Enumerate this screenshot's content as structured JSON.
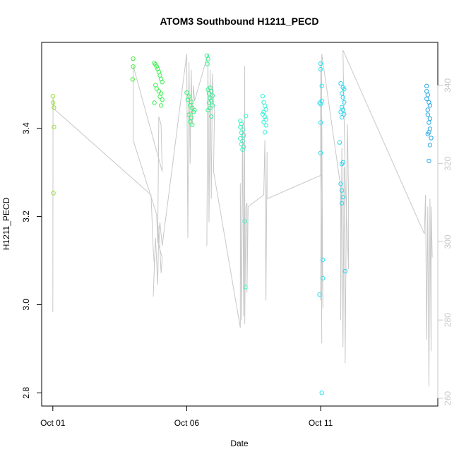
{
  "chart_data": {
    "type": "scatter",
    "title": "ATOM3 Southbound H1211_PECD",
    "xlabel": "Date",
    "ylabel": "H1211_PECD",
    "xlim": [
      "2016-09-30T14:00",
      "2016-10-15T09:00"
    ],
    "ylim": [
      2.77,
      3.595
    ],
    "y2lim": [
      258,
      351
    ],
    "x_ticks": [
      {
        "date": "2016-10-01",
        "label": "Oct 01"
      },
      {
        "date": "2016-10-06",
        "label": "Oct 06"
      },
      {
        "date": "2016-10-11",
        "label": "Oct 11"
      }
    ],
    "y_ticks": [
      "2.8",
      "3.0",
      "3.2",
      "3.4"
    ],
    "y2_ticks": [
      "260",
      "280",
      "300",
      "320",
      "340"
    ],
    "grid": false,
    "legend": "none",
    "colors": {
      "points_gradient": [
        "#9be040",
        "#4aea2c",
        "#3cf26a",
        "#3cf5c8",
        "#30e8ee",
        "#2cc2f0",
        "#2ba4e6"
      ],
      "secondary_line": "#c8c8c8"
    },
    "series": [
      {
        "axis": "left",
        "points": [
          [
            "2016-10-01T00:00",
            3.473
          ],
          [
            "2016-10-01T00:10",
            3.458
          ],
          [
            "2016-10-01T01:00",
            3.447
          ],
          [
            "2016-10-01T01:00",
            3.403
          ],
          [
            "2016-10-01T00:30",
            3.253
          ],
          [
            "2016-10-04T00:00",
            3.558
          ],
          [
            "2016-10-04T00:00",
            3.54
          ],
          [
            "2016-10-03T23:30",
            3.511
          ],
          [
            "2016-10-04T19:00",
            3.548
          ],
          [
            "2016-10-04T20:00",
            3.545
          ],
          [
            "2016-10-04T21:00",
            3.54
          ],
          [
            "2016-10-04T22:00",
            3.535
          ],
          [
            "2016-10-04T23:00",
            3.528
          ],
          [
            "2016-10-05T00:00",
            3.52
          ],
          [
            "2016-10-05T01:00",
            3.512
          ],
          [
            "2016-10-05T02:00",
            3.505
          ],
          [
            "2016-10-04T20:00",
            3.498
          ],
          [
            "2016-10-04T21:00",
            3.49
          ],
          [
            "2016-10-04T23:00",
            3.484
          ],
          [
            "2016-10-05T01:00",
            3.479
          ],
          [
            "2016-10-05T00:00",
            3.472
          ],
          [
            "2016-10-05T02:00",
            3.465
          ],
          [
            "2016-10-04T19:00",
            3.458
          ],
          [
            "2016-10-05T01:00",
            3.452
          ],
          [
            "2016-10-06T00:00",
            3.481
          ],
          [
            "2016-10-06T02:00",
            3.472
          ],
          [
            "2016-10-06T01:00",
            3.465
          ],
          [
            "2016-10-06T04:00",
            3.46
          ],
          [
            "2016-10-06T03:00",
            3.452
          ],
          [
            "2016-10-06T05:00",
            3.446
          ],
          [
            "2016-10-06T07:00",
            3.441
          ],
          [
            "2016-10-06T06:00",
            3.437
          ],
          [
            "2016-10-06T02:00",
            3.431
          ],
          [
            "2016-10-06T04:00",
            3.424
          ],
          [
            "2016-10-06T03:00",
            3.415
          ],
          [
            "2016-10-06T05:00",
            3.408
          ],
          [
            "2016-10-06T18:00",
            3.565
          ],
          [
            "2016-10-06T19:00",
            3.557
          ],
          [
            "2016-10-06T18:30",
            3.546
          ],
          [
            "2016-10-06T21:00",
            3.492
          ],
          [
            "2016-10-06T19:00",
            3.488
          ],
          [
            "2016-10-06T22:00",
            3.484
          ],
          [
            "2016-10-06T20:00",
            3.479
          ],
          [
            "2016-10-06T23:00",
            3.474
          ],
          [
            "2016-10-06T21:00",
            3.469
          ],
          [
            "2016-10-06T22:00",
            3.463
          ],
          [
            "2016-10-06T20:00",
            3.458
          ],
          [
            "2016-10-06T23:00",
            3.452
          ],
          [
            "2016-10-06T21:00",
            3.446
          ],
          [
            "2016-10-06T19:00",
            3.441
          ],
          [
            "2016-10-06T22:00",
            3.427
          ],
          [
            "2016-10-08T00:00",
            3.417
          ],
          [
            "2016-10-08T01:00",
            3.41
          ],
          [
            "2016-10-08T00:00",
            3.403
          ],
          [
            "2016-10-08T02:00",
            3.397
          ],
          [
            "2016-10-08T01:00",
            3.39
          ],
          [
            "2016-10-08T03:00",
            3.384
          ],
          [
            "2016-10-08T00:00",
            3.377
          ],
          [
            "2016-10-08T02:00",
            3.371
          ],
          [
            "2016-10-08T01:00",
            3.364
          ],
          [
            "2016-10-08T03:00",
            3.358
          ],
          [
            "2016-10-08T02:00",
            3.352
          ],
          [
            "2016-10-08T05:00",
            3.428
          ],
          [
            "2016-10-08T04:00",
            3.189
          ],
          [
            "2016-10-08T04:30",
            3.04
          ],
          [
            "2016-10-08T20:00",
            3.473
          ],
          [
            "2016-10-08T21:00",
            3.459
          ],
          [
            "2016-10-08T22:00",
            3.451
          ],
          [
            "2016-10-08T23:00",
            3.443
          ],
          [
            "2016-10-08T21:00",
            3.437
          ],
          [
            "2016-10-08T20:00",
            3.432
          ],
          [
            "2016-10-08T22:00",
            3.426
          ],
          [
            "2016-10-08T23:00",
            3.42
          ],
          [
            "2016-10-08T21:00",
            3.414
          ],
          [
            "2016-10-08T23:00",
            3.407
          ],
          [
            "2016-10-08T22:00",
            3.391
          ],
          [
            "2016-10-11T00:00",
            3.547
          ],
          [
            "2016-10-11T00:00",
            3.534
          ],
          [
            "2016-10-11T01:00",
            3.496
          ],
          [
            "2016-10-10T23:00",
            3.458
          ],
          [
            "2016-10-11T00:00",
            3.455
          ],
          [
            "2016-10-11T01:00",
            3.462
          ],
          [
            "2016-10-11T00:00",
            3.413
          ],
          [
            "2016-10-11T00:00",
            3.344
          ],
          [
            "2016-10-11T02:00",
            3.102
          ],
          [
            "2016-10-10T23:00",
            3.023
          ],
          [
            "2016-10-11T02:00",
            3.06
          ],
          [
            "2016-10-11T01:00",
            2.8
          ],
          [
            "2016-10-11T18:00",
            3.502
          ],
          [
            "2016-10-11T20:00",
            3.493
          ],
          [
            "2016-10-11T21:00",
            3.489
          ],
          [
            "2016-10-11T19:00",
            3.479
          ],
          [
            "2016-10-11T20:00",
            3.47
          ],
          [
            "2016-10-11T21:00",
            3.459
          ],
          [
            "2016-10-11T19:00",
            3.448
          ],
          [
            "2016-10-11T20:00",
            3.442
          ],
          [
            "2016-10-11T18:00",
            3.437
          ],
          [
            "2016-10-11T21:00",
            3.432
          ],
          [
            "2016-10-11T19:00",
            3.425
          ],
          [
            "2016-10-11T17:00",
            3.368
          ],
          [
            "2016-10-11T20:00",
            3.323
          ],
          [
            "2016-10-11T19:00",
            3.319
          ],
          [
            "2016-10-11T18:00",
            3.274
          ],
          [
            "2016-10-11T19:00",
            3.259
          ],
          [
            "2016-10-11T20:00",
            3.244
          ],
          [
            "2016-10-11T19:00",
            3.23
          ],
          [
            "2016-10-11T22:00",
            3.076
          ],
          [
            "2016-10-14T23:00",
            3.496
          ],
          [
            "2016-10-14T23:00",
            3.484
          ],
          [
            "2016-10-15T00:00",
            3.476
          ],
          [
            "2016-10-14T23:00",
            3.467
          ],
          [
            "2016-10-15T01:00",
            3.459
          ],
          [
            "2016-10-15T02:00",
            3.452
          ],
          [
            "2016-10-15T00:00",
            3.442
          ],
          [
            "2016-10-15T00:00",
            3.431
          ],
          [
            "2016-10-15T02:00",
            3.422
          ],
          [
            "2016-10-15T01:00",
            3.413
          ],
          [
            "2016-10-15T02:00",
            3.399
          ],
          [
            "2016-10-15T01:00",
            3.391
          ],
          [
            "2016-10-15T00:00",
            3.387
          ],
          [
            "2016-10-15T03:00",
            3.378
          ],
          [
            "2016-10-15T02:00",
            3.362
          ],
          [
            "2016-10-15T01:00",
            3.326
          ]
        ]
      },
      {
        "axis": "right",
        "path": [
          [
            "2016-10-01T00:00",
            282
          ],
          [
            "2016-10-01T00:10",
            337
          ],
          [
            "2016-10-01T01:00",
            334
          ],
          [
            "2016-10-04T16:00",
            312
          ],
          [
            "2016-10-04T18:00",
            298
          ],
          [
            "2016-10-04T19:00",
            294
          ],
          [
            "2016-10-04T18:00",
            286
          ],
          [
            "2016-10-04T20:00",
            301
          ],
          [
            "2016-10-04T21:00",
            295
          ],
          [
            "2016-10-04T22:00",
            289
          ],
          [
            "2016-10-04T23:00",
            304
          ],
          [
            "2016-10-05T00:00",
            298
          ],
          [
            "2016-10-05T01:00",
            292
          ],
          [
            "2016-10-05T02:00",
            296
          ],
          [
            "2016-10-04T22:00",
            300
          ],
          [
            "2016-10-04T23:00",
            332
          ],
          [
            "2016-10-05T01:00",
            330
          ],
          [
            "2016-10-05T02:00",
            318
          ],
          [
            "2016-10-04T00:00",
            345
          ],
          [
            "2016-10-04T00:00",
            326
          ],
          [
            "2016-10-04T21:00",
            307
          ],
          [
            "2016-10-04T22:00",
            300
          ],
          [
            "2016-10-05T00:00",
            305
          ],
          [
            "2016-10-05T02:00",
            299
          ],
          [
            "2016-10-06T00:00",
            348
          ],
          [
            "2016-10-06T01:00",
            301
          ],
          [
            "2016-10-06T02:00",
            346
          ],
          [
            "2016-10-06T03:00",
            320
          ],
          [
            "2016-10-06T04:00",
            344
          ],
          [
            "2016-10-06T05:00",
            330
          ],
          [
            "2016-10-06T06:00",
            340
          ],
          [
            "2016-10-06T07:00",
            336
          ],
          [
            "2016-10-06T19:00",
            348
          ],
          [
            "2016-10-06T18:00",
            299
          ],
          [
            "2016-10-06T19:00",
            346
          ],
          [
            "2016-10-06T20:00",
            305
          ],
          [
            "2016-10-06T21:00",
            344
          ],
          [
            "2016-10-06T22:00",
            311
          ],
          [
            "2016-10-06T23:00",
            343
          ],
          [
            "2016-10-07T00:00",
            335
          ],
          [
            "2016-10-07T01:00",
            335
          ],
          [
            "2016-10-07T00:00",
            318
          ],
          [
            "2016-10-08T00:00",
            278
          ],
          [
            "2016-10-08T00:00",
            315
          ],
          [
            "2016-10-08T01:00",
            280
          ],
          [
            "2016-10-08T02:00",
            330
          ],
          [
            "2016-10-08T03:00",
            281
          ],
          [
            "2016-10-08T04:00",
            345
          ],
          [
            "2016-10-08T04:00",
            279
          ],
          [
            "2016-10-08T05:00",
            309
          ],
          [
            "2016-10-08T06:00",
            310
          ],
          [
            "2016-10-08T06:00",
            287
          ],
          [
            "2016-10-08T07:00",
            309
          ],
          [
            "2016-10-08T21:00",
            312
          ],
          [
            "2016-10-08T22:00",
            326
          ],
          [
            "2016-10-08T23:00",
            285
          ],
          [
            "2016-10-09T00:00",
            323
          ],
          [
            "2016-10-09T00:00",
            311
          ],
          [
            "2016-10-11T00:00",
            317
          ],
          [
            "2016-10-11T00:00",
            346
          ],
          [
            "2016-10-11T01:00",
            274
          ],
          [
            "2016-10-11T00:00",
            324
          ],
          [
            "2016-10-11T02:00",
            283
          ],
          [
            "2016-10-11T01:00",
            332
          ],
          [
            "2016-10-11T00:00",
            285
          ],
          [
            "2016-10-11T01:00",
            348
          ],
          [
            "2016-10-11T18:00",
            314
          ],
          [
            "2016-10-11T18:00",
            280
          ],
          [
            "2016-10-11T19:00",
            324
          ],
          [
            "2016-10-11T20:00",
            273
          ],
          [
            "2016-10-11T21:00",
            319
          ],
          [
            "2016-10-11T22:00",
            269
          ],
          [
            "2016-10-11T23:00",
            306
          ],
          [
            "2016-10-12T00:00",
            330
          ],
          [
            "2016-10-12T01:00",
            312
          ],
          [
            "2016-10-12T01:00",
            293
          ],
          [
            "2016-10-11T22:00",
            316
          ],
          [
            "2016-10-11T20:00",
            349
          ],
          [
            "2016-10-14T21:00",
            302
          ],
          [
            "2016-10-14T22:00",
            312
          ],
          [
            "2016-10-14T23:00",
            275
          ],
          [
            "2016-10-15T00:00",
            309
          ],
          [
            "2016-10-15T01:00",
            263
          ],
          [
            "2016-10-15T02:00",
            311
          ],
          [
            "2016-10-15T03:00",
            272
          ],
          [
            "2016-10-15T03:00",
            309
          ],
          [
            "2016-10-15T04:00",
            296
          ]
        ]
      }
    ]
  }
}
